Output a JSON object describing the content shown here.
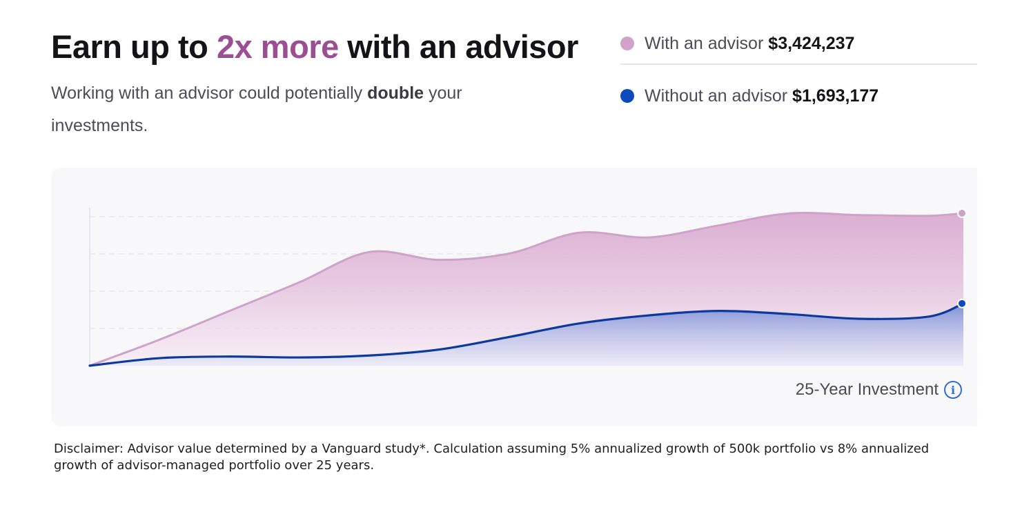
{
  "header": {
    "title_prefix": "Earn up to ",
    "title_accent": "2x more",
    "title_suffix": " with an advisor",
    "subtitle_prefix": "Working with an advisor could potentially ",
    "subtitle_bold": "double",
    "subtitle_suffix": " your investments."
  },
  "legend": {
    "with": {
      "label": "With an advisor",
      "value": "$3,424,237",
      "color": "#cfa2c9"
    },
    "without": {
      "label": "Without an advisor",
      "value": "$1,693,177",
      "color": "#0c4bbf"
    }
  },
  "chart_caption": "25-Year Investment",
  "info_icon": "info-icon",
  "disclaimer": "Disclaimer: Advisor value determined by a Vanguard study*. Calculation assuming 5% annualized growth of 500k portfolio vs 8% annualized growth of advisor-managed portfolio over 25 years.",
  "chart_data": {
    "type": "area",
    "xlabel": "25-Year Investment",
    "ylabel": "",
    "x": [
      0,
      2,
      4,
      6,
      8,
      10,
      12,
      14,
      16,
      18,
      20,
      22,
      24,
      25
    ],
    "ylim": [
      500000,
      3424237
    ],
    "grid": true,
    "legend_position": "top-right",
    "series": [
      {
        "name": "With an advisor",
        "color": "#cfa2c9",
        "values": [
          500000,
          1000000,
          1550000,
          2100000,
          2680000,
          2530000,
          2650000,
          3050000,
          2960000,
          3190000,
          3420000,
          3390000,
          3375000,
          3424237
        ]
      },
      {
        "name": "Without an advisor",
        "color": "#0c4bbf",
        "values": [
          500000,
          645000,
          675000,
          658000,
          695000,
          810000,
          1050000,
          1310000,
          1465000,
          1550000,
          1490000,
          1400000,
          1440000,
          1693177
        ]
      }
    ]
  }
}
